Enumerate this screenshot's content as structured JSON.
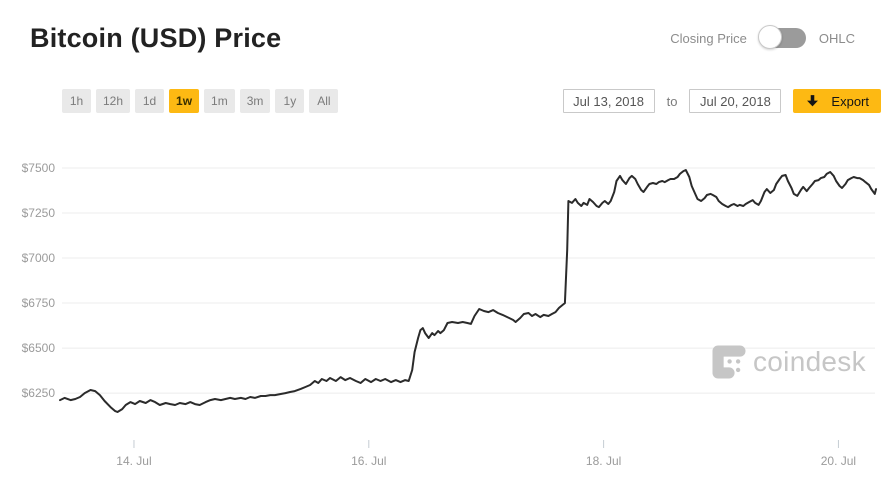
{
  "header": {
    "title": "Bitcoin (USD) Price",
    "toggle": {
      "left_label": "Closing Price",
      "right_label": "OHLC",
      "state": "left"
    }
  },
  "controls": {
    "ranges": [
      {
        "label": "1h",
        "active": false
      },
      {
        "label": "12h",
        "active": false
      },
      {
        "label": "1d",
        "active": false
      },
      {
        "label": "1w",
        "active": true
      },
      {
        "label": "1m",
        "active": false
      },
      {
        "label": "3m",
        "active": false
      },
      {
        "label": "1y",
        "active": false
      },
      {
        "label": "All",
        "active": false
      }
    ],
    "date_from": "Jul 13, 2018",
    "to_label": "to",
    "date_to": "Jul 20, 2018",
    "export_label": "Export",
    "export_icon": "download-arrow-icon"
  },
  "watermark": {
    "icon": "coindesk-logo-mark",
    "text": "coindesk"
  },
  "colors": {
    "accent": "#fdb913",
    "line": "#2b2b2b",
    "grid": "#ececec",
    "axis_text": "#9b9b9b",
    "tick": "#c5ccd3",
    "button_bg": "#e9e9e9",
    "button_text": "#7b7b7b",
    "toggle_bg": "#9b9b9b",
    "watermark": "#c6c6c6"
  },
  "chart_data": {
    "type": "line",
    "title": "Bitcoin (USD) Price",
    "x_unit": "day of July 2018",
    "y_unit": "USD",
    "xlim": [
      13.37,
      20.32
    ],
    "ylim": [
      5945,
      7600
    ],
    "grid": "horizontal",
    "legend": "none",
    "y_ticks": [
      {
        "value": 7500,
        "label": "$7500"
      },
      {
        "value": 7250,
        "label": "$7250"
      },
      {
        "value": 7000,
        "label": "$7000"
      },
      {
        "value": 6750,
        "label": "$6750"
      },
      {
        "value": 6500,
        "label": "$6500"
      },
      {
        "value": 6250,
        "label": "$6250"
      }
    ],
    "x_ticks": [
      {
        "value": 14,
        "label": "14. Jul"
      },
      {
        "value": 16,
        "label": "16. Jul"
      },
      {
        "value": 18,
        "label": "18. Jul"
      },
      {
        "value": 20,
        "label": "20. Jul"
      }
    ],
    "series": [
      {
        "name": "Closing Price",
        "points": [
          [
            13.37,
            6211
          ],
          [
            13.41,
            6223
          ],
          [
            13.46,
            6211
          ],
          [
            13.5,
            6217
          ],
          [
            13.54,
            6228
          ],
          [
            13.58,
            6250
          ],
          [
            13.63,
            6267
          ],
          [
            13.67,
            6261
          ],
          [
            13.71,
            6239
          ],
          [
            13.75,
            6206
          ],
          [
            13.8,
            6172
          ],
          [
            13.84,
            6150
          ],
          [
            13.86,
            6145
          ],
          [
            13.9,
            6161
          ],
          [
            13.93,
            6184
          ],
          [
            13.97,
            6200
          ],
          [
            14.01,
            6189
          ],
          [
            14.05,
            6206
          ],
          [
            14.1,
            6195
          ],
          [
            14.14,
            6211
          ],
          [
            14.18,
            6200
          ],
          [
            14.22,
            6184
          ],
          [
            14.27,
            6195
          ],
          [
            14.31,
            6189
          ],
          [
            14.35,
            6184
          ],
          [
            14.39,
            6195
          ],
          [
            14.44,
            6189
          ],
          [
            14.48,
            6200
          ],
          [
            14.52,
            6189
          ],
          [
            14.56,
            6184
          ],
          [
            14.61,
            6200
          ],
          [
            14.65,
            6211
          ],
          [
            14.69,
            6217
          ],
          [
            14.74,
            6211
          ],
          [
            14.78,
            6217
          ],
          [
            14.82,
            6223
          ],
          [
            14.86,
            6217
          ],
          [
            14.91,
            6223
          ],
          [
            14.95,
            6217
          ],
          [
            14.99,
            6228
          ],
          [
            15.03,
            6223
          ],
          [
            15.08,
            6234
          ],
          [
            15.12,
            6234
          ],
          [
            15.16,
            6239
          ],
          [
            15.2,
            6239
          ],
          [
            15.25,
            6245
          ],
          [
            15.29,
            6250
          ],
          [
            15.33,
            6256
          ],
          [
            15.37,
            6261
          ],
          [
            15.42,
            6273
          ],
          [
            15.46,
            6284
          ],
          [
            15.5,
            6295
          ],
          [
            15.54,
            6317
          ],
          [
            15.57,
            6306
          ],
          [
            15.6,
            6328
          ],
          [
            15.64,
            6317
          ],
          [
            15.67,
            6334
          ],
          [
            15.72,
            6317
          ],
          [
            15.76,
            6339
          ],
          [
            15.8,
            6322
          ],
          [
            15.84,
            6334
          ],
          [
            15.89,
            6317
          ],
          [
            15.93,
            6306
          ],
          [
            15.97,
            6328
          ],
          [
            16.02,
            6311
          ],
          [
            16.06,
            6328
          ],
          [
            16.1,
            6317
          ],
          [
            16.14,
            6328
          ],
          [
            16.19,
            6311
          ],
          [
            16.23,
            6322
          ],
          [
            16.27,
            6311
          ],
          [
            16.31,
            6322
          ],
          [
            16.34,
            6317
          ],
          [
            16.37,
            6378
          ],
          [
            16.39,
            6478
          ],
          [
            16.42,
            6556
          ],
          [
            16.44,
            6600
          ],
          [
            16.46,
            6611
          ],
          [
            16.48,
            6583
          ],
          [
            16.51,
            6556
          ],
          [
            16.54,
            6583
          ],
          [
            16.56,
            6572
          ],
          [
            16.59,
            6595
          ],
          [
            16.61,
            6583
          ],
          [
            16.64,
            6600
          ],
          [
            16.67,
            6639
          ],
          [
            16.71,
            6645
          ],
          [
            16.76,
            6639
          ],
          [
            16.8,
            6645
          ],
          [
            16.84,
            6639
          ],
          [
            16.87,
            6634
          ],
          [
            16.9,
            6678
          ],
          [
            16.94,
            6717
          ],
          [
            16.98,
            6706
          ],
          [
            17.02,
            6700
          ],
          [
            17.06,
            6711
          ],
          [
            17.1,
            6695
          ],
          [
            17.14,
            6684
          ],
          [
            17.18,
            6672
          ],
          [
            17.23,
            6656
          ],
          [
            17.25,
            6645
          ],
          [
            17.29,
            6667
          ],
          [
            17.32,
            6689
          ],
          [
            17.36,
            6695
          ],
          [
            17.39,
            6678
          ],
          [
            17.42,
            6689
          ],
          [
            17.46,
            6672
          ],
          [
            17.49,
            6684
          ],
          [
            17.53,
            6678
          ],
          [
            17.56,
            6689
          ],
          [
            17.59,
            6700
          ],
          [
            17.62,
            6723
          ],
          [
            17.65,
            6739
          ],
          [
            17.67,
            6750
          ],
          [
            17.69,
            7045
          ],
          [
            17.7,
            7317
          ],
          [
            17.73,
            7306
          ],
          [
            17.76,
            7328
          ],
          [
            17.78,
            7306
          ],
          [
            17.81,
            7289
          ],
          [
            17.83,
            7306
          ],
          [
            17.86,
            7295
          ],
          [
            17.88,
            7328
          ],
          [
            17.91,
            7311
          ],
          [
            17.94,
            7289
          ],
          [
            17.96,
            7283
          ],
          [
            17.99,
            7306
          ],
          [
            18.01,
            7317
          ],
          [
            18.04,
            7300
          ],
          [
            18.06,
            7317
          ],
          [
            18.09,
            7367
          ],
          [
            18.11,
            7428
          ],
          [
            18.14,
            7456
          ],
          [
            18.16,
            7433
          ],
          [
            18.19,
            7411
          ],
          [
            18.22,
            7444
          ],
          [
            18.24,
            7456
          ],
          [
            18.27,
            7439
          ],
          [
            18.29,
            7411
          ],
          [
            18.32,
            7378
          ],
          [
            18.34,
            7367
          ],
          [
            18.37,
            7395
          ],
          [
            18.39,
            7411
          ],
          [
            18.42,
            7417
          ],
          [
            18.45,
            7411
          ],
          [
            18.47,
            7422
          ],
          [
            18.5,
            7428
          ],
          [
            18.52,
            7422
          ],
          [
            18.55,
            7433
          ],
          [
            18.57,
            7439
          ],
          [
            18.6,
            7439
          ],
          [
            18.63,
            7450
          ],
          [
            18.65,
            7467
          ],
          [
            18.68,
            7483
          ],
          [
            18.7,
            7489
          ],
          [
            18.73,
            7450
          ],
          [
            18.75,
            7400
          ],
          [
            18.78,
            7356
          ],
          [
            18.8,
            7328
          ],
          [
            18.83,
            7317
          ],
          [
            18.86,
            7333
          ],
          [
            18.88,
            7350
          ],
          [
            18.91,
            7356
          ],
          [
            18.93,
            7350
          ],
          [
            18.96,
            7339
          ],
          [
            18.98,
            7317
          ],
          [
            19.01,
            7300
          ],
          [
            19.04,
            7289
          ],
          [
            19.06,
            7283
          ],
          [
            19.09,
            7295
          ],
          [
            19.11,
            7300
          ],
          [
            19.14,
            7289
          ],
          [
            19.16,
            7295
          ],
          [
            19.19,
            7289
          ],
          [
            19.21,
            7300
          ],
          [
            19.24,
            7311
          ],
          [
            19.27,
            7322
          ],
          [
            19.29,
            7306
          ],
          [
            19.32,
            7295
          ],
          [
            19.34,
            7317
          ],
          [
            19.37,
            7367
          ],
          [
            19.39,
            7383
          ],
          [
            19.42,
            7361
          ],
          [
            19.45,
            7378
          ],
          [
            19.47,
            7411
          ],
          [
            19.5,
            7439
          ],
          [
            19.52,
            7456
          ],
          [
            19.55,
            7461
          ],
          [
            19.57,
            7428
          ],
          [
            19.6,
            7389
          ],
          [
            19.62,
            7356
          ],
          [
            19.65,
            7345
          ],
          [
            19.68,
            7378
          ],
          [
            19.7,
            7395
          ],
          [
            19.73,
            7372
          ],
          [
            19.75,
            7389
          ],
          [
            19.78,
            7411
          ],
          [
            19.8,
            7428
          ],
          [
            19.83,
            7433
          ],
          [
            19.85,
            7444
          ],
          [
            19.88,
            7450
          ],
          [
            19.9,
            7467
          ],
          [
            19.93,
            7478
          ],
          [
            19.96,
            7456
          ],
          [
            19.98,
            7428
          ],
          [
            20.01,
            7400
          ],
          [
            20.03,
            7389
          ],
          [
            20.06,
            7411
          ],
          [
            20.08,
            7433
          ],
          [
            20.11,
            7444
          ],
          [
            20.13,
            7450
          ],
          [
            20.16,
            7444
          ],
          [
            20.18,
            7444
          ],
          [
            20.21,
            7433
          ],
          [
            20.23,
            7422
          ],
          [
            20.26,
            7406
          ],
          [
            20.28,
            7383
          ],
          [
            20.31,
            7356
          ],
          [
            20.32,
            7383
          ]
        ]
      }
    ]
  }
}
